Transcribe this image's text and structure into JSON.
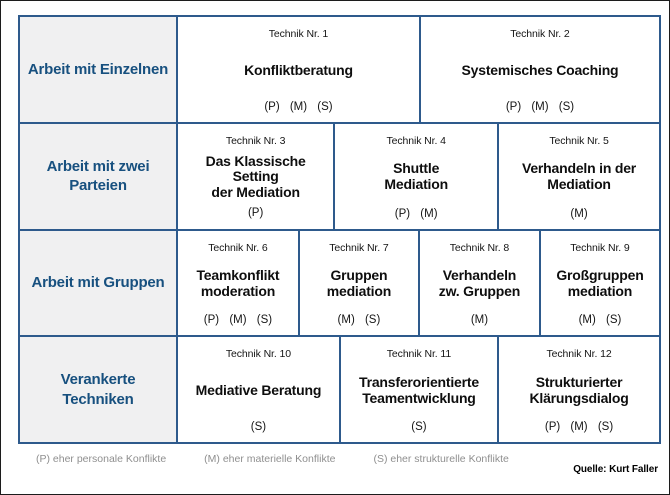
{
  "colors": {
    "border_navy": "#2e5a8c",
    "category_text_navy": "#17507f",
    "category_bg": "#f0f0f1",
    "legend_gray": "#8f8f8f"
  },
  "rows": [
    {
      "category": "Arbeit mit Einzelnen",
      "cells": [
        {
          "number": "Technik Nr. 1",
          "name": "Konfliktberatung",
          "codes": "(P) (M) (S)"
        },
        {
          "number": "Technik Nr. 2",
          "name": "Systemisches Coaching",
          "codes": "(P) (M) (S)"
        }
      ]
    },
    {
      "category": "Arbeit mit zwei\nParteien",
      "cells": [
        {
          "number": "Technik Nr. 3",
          "name": "Das Klassische Setting\nder Mediation",
          "codes": "(P)"
        },
        {
          "number": "Technik Nr. 4",
          "name": "Shuttle\nMediation",
          "codes": "(P) (M)"
        },
        {
          "number": "Technik Nr. 5",
          "name": "Verhandeln in der\nMediation",
          "codes": "(M)"
        }
      ]
    },
    {
      "category": "Arbeit mit Gruppen",
      "cells": [
        {
          "number": "Technik Nr. 6",
          "name": "Teamkonflikt\nmoderation",
          "codes": "(P) (M) (S)"
        },
        {
          "number": "Technik Nr. 7",
          "name": "Gruppen\nmediation",
          "codes": "(M) (S)"
        },
        {
          "number": "Technik Nr. 8",
          "name": "Verhandeln\nzw. Gruppen",
          "codes": "(M)"
        },
        {
          "number": "Technik Nr. 9",
          "name": "Großgruppen\nmediation",
          "codes": "(M) (S)"
        }
      ]
    },
    {
      "category": "Verankerte\nTechniken",
      "cells": [
        {
          "number": "Technik Nr. 10",
          "name": "Mediative Beratung",
          "codes": "(S)"
        },
        {
          "number": "Technik Nr. 11",
          "name": "Transferorientierte\nTeamentwicklung",
          "codes": "(S)"
        },
        {
          "number": "Technik Nr. 12",
          "name": "Strukturierter\nKlärungsdialog",
          "codes": "(P) (M) (S)"
        }
      ]
    }
  ],
  "legend": {
    "p": "(P) eher personale Konflikte",
    "m": "(M) eher materielle Konflikte",
    "s": "(S) eher strukturelle Konflikte"
  },
  "source_label": "Quelle: Kurt Faller"
}
